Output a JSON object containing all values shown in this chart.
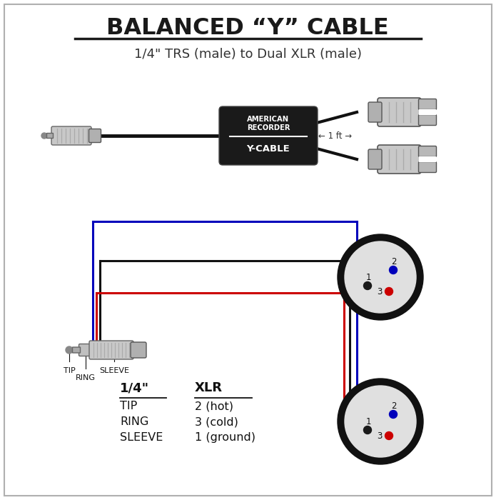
{
  "title": "BALANCED “Y” CABLE",
  "subtitle": "1/4\" TRS (male) to Dual XLR (male)",
  "bg_color": "#ffffff",
  "border_color": "#b0b0b0",
  "title_color": "#1a1a1a",
  "subtitle_color": "#333333",
  "wire_black": "#111111",
  "wire_red": "#cc0000",
  "wire_blue": "#0000bb",
  "box_color": "#1a1a1a",
  "box_text_color": "#ffffff",
  "xlr_outer": "#111111",
  "xlr_inner": "#e0e0e0",
  "connector_gray": "#c0c0c0",
  "connector_dark": "#888888",
  "table_header_1": "1/4\"",
  "table_header_2": "XLR",
  "table_rows": [
    [
      "TIP",
      "2 (hot)"
    ],
    [
      "RING",
      "3 (cold)"
    ],
    [
      "SLEEVE",
      "1 (ground)"
    ]
  ],
  "label_1ft": "← 1 ft →",
  "label_american": "AMERICAN\nRECORDER",
  "label_ycable": "Y-CABLE"
}
